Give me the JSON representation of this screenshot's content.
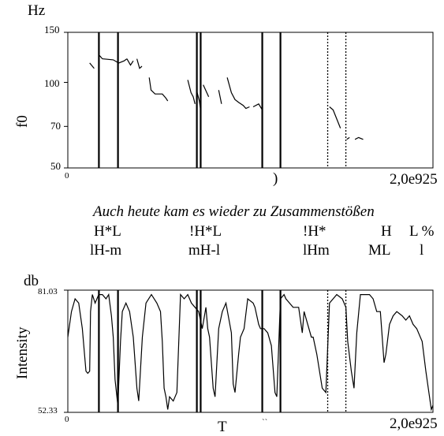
{
  "chart_data": [
    {
      "type": "line",
      "panel": "f0",
      "ylabel": "f0",
      "unit": "Hz",
      "y_scale": "log",
      "ylim": [
        50,
        150
      ],
      "yticks": [
        "50",
        "70",
        "100",
        "150"
      ],
      "x_start_label": "0",
      "x_end_label": "2,0е925",
      "x_partial_label": ")",
      "xlim": [
        0,
        2.00925
      ],
      "series": [
        {
          "segments": [
            [
              [
                0.12,
                117
              ],
              [
                0.145,
                112
              ]
            ],
            [
              [
                0.171,
                125
              ],
              [
                0.19,
                121
              ],
              [
                0.25,
                120
              ],
              [
                0.28,
                117
              ],
              [
                0.31,
                119
              ],
              [
                0.325,
                121
              ]
            ],
            [
              [
                0.325,
                121
              ],
              [
                0.345,
                115
              ],
              [
                0.36,
                119
              ]
            ],
            [
              [
                0.38,
                121
              ],
              [
                0.395,
                112
              ],
              [
                0.408,
                114
              ]
            ],
            [
              [
                0.448,
                104
              ],
              [
                0.458,
                94
              ],
              [
                0.48,
                91
              ],
              [
                0.52,
                91
              ],
              [
                0.54,
                88
              ],
              [
                0.55,
                86
              ]
            ],
            [
              [
                0.66,
                102
              ],
              [
                0.678,
                92
              ],
              [
                0.69,
                89
              ],
              [
                0.7,
                84
              ]
            ],
            [
              [
                0.71,
                93
              ],
              [
                0.724,
                86
              ],
              [
                0.731,
                80
              ]
            ],
            [
              [
                0.745,
                98
              ],
              [
                0.775,
                89
              ]
            ],
            [
              [
                0.83,
                94
              ],
              [
                0.846,
                84
              ]
            ],
            [
              [
                0.877,
                104
              ],
              [
                0.9,
                92
              ],
              [
                0.92,
                87
              ],
              [
                0.94,
                85
              ],
              [
                0.965,
                83
              ],
              [
                0.98,
                81
              ],
              [
                1.0,
                82
              ]
            ],
            [
              [
                1.02,
                82
              ],
              [
                1.05,
                84
              ],
              [
                1.07,
                80
              ]
            ],
            [
              [
                1.44,
                82
              ],
              [
                1.46,
                80
              ],
              [
                1.5,
                69
              ]
            ],
            [
              [
                1.535,
                63
              ],
              [
                1.55,
                64
              ]
            ],
            [
              [
                1.58,
                63
              ],
              [
                1.6,
                64
              ],
              [
                1.625,
                63
              ]
            ]
          ]
        }
      ]
    },
    {
      "type": "line",
      "panel": "intensity",
      "ylabel": "Intensity",
      "unit": "db",
      "ylim": [
        52.33,
        81.03
      ],
      "yticks": [
        "52.33",
        "81.03"
      ],
      "x_start_label": "0",
      "x_end_label": "2,0е925",
      "x_partial_label": "T",
      "x_partial_label_b": "`` ",
      "xlim": [
        0,
        2.00925
      ],
      "series": [
        {
          "points": [
            [
              0,
              70
            ],
            [
              0.02,
              76
            ],
            [
              0.04,
              79
            ],
            [
              0.06,
              78
            ],
            [
              0.08,
              72
            ],
            [
              0.1,
              62
            ],
            [
              0.11,
              61.5
            ],
            [
              0.12,
              62
            ],
            [
              0.125,
              76
            ],
            [
              0.135,
              80
            ],
            [
              0.15,
              78
            ],
            [
              0.16,
              79
            ],
            [
              0.17,
              80
            ],
            [
              0.19,
              80
            ],
            [
              0.21,
              79
            ],
            [
              0.225,
              80
            ],
            [
              0.24,
              75
            ],
            [
              0.25,
              70
            ],
            [
              0.26,
              60
            ],
            [
              0.275,
              54
            ],
            [
              0.29,
              69
            ],
            [
              0.3,
              76
            ],
            [
              0.32,
              78
            ],
            [
              0.34,
              76
            ],
            [
              0.36,
              70
            ],
            [
              0.38,
              58
            ],
            [
              0.39,
              55
            ],
            [
              0.41,
              70
            ],
            [
              0.43,
              78
            ],
            [
              0.46,
              80
            ],
            [
              0.49,
              78
            ],
            [
              0.51,
              76
            ],
            [
              0.52,
              69
            ],
            [
              0.53,
              58
            ],
            [
              0.54,
              56
            ],
            [
              0.55,
              53
            ],
            [
              0.56,
              56
            ],
            [
              0.58,
              55
            ],
            [
              0.6,
              57
            ],
            [
              0.62,
              80
            ],
            [
              0.64,
              79
            ],
            [
              0.66,
              80
            ],
            [
              0.68,
              78
            ],
            [
              0.7,
              77
            ],
            [
              0.72,
              76
            ],
            [
              0.74,
              72
            ],
            [
              0.76,
              77
            ],
            [
              0.77,
              72
            ],
            [
              0.78,
              70
            ],
            [
              0.8,
              58
            ],
            [
              0.81,
              56
            ],
            [
              0.83,
              72
            ],
            [
              0.85,
              76
            ],
            [
              0.87,
              78
            ],
            [
              0.9,
              71
            ],
            [
              0.91,
              59
            ],
            [
              0.92,
              57
            ],
            [
              0.94,
              66
            ],
            [
              0.95,
              70
            ],
            [
              0.97,
              72
            ],
            [
              0.99,
              79
            ],
            [
              1.02,
              78
            ],
            [
              1.03,
              77
            ],
            [
              1.05,
              73
            ],
            [
              1.06,
              72
            ],
            [
              1.08,
              72
            ],
            [
              1.1,
              71
            ],
            [
              1.12,
              68
            ],
            [
              1.14,
              57
            ],
            [
              1.15,
              56
            ],
            [
              1.17,
              79
            ],
            [
              1.19,
              80
            ],
            [
              1.2,
              79
            ],
            [
              1.22,
              78
            ],
            [
              1.24,
              77
            ],
            [
              1.27,
              77
            ],
            [
              1.29,
              71
            ],
            [
              1.3,
              76
            ],
            [
              1.32,
              73
            ],
            [
              1.34,
              70
            ],
            [
              1.35,
              70
            ],
            [
              1.37,
              66
            ],
            [
              1.4,
              58
            ],
            [
              1.42,
              57
            ],
            [
              1.44,
              78
            ],
            [
              1.46,
              79
            ],
            [
              1.48,
              80
            ],
            [
              1.51,
              79
            ],
            [
              1.53,
              77
            ],
            [
              1.54,
              69
            ],
            [
              1.56,
              62
            ],
            [
              1.575,
              58
            ],
            [
              1.59,
              71
            ],
            [
              1.61,
              80
            ],
            [
              1.63,
              80
            ],
            [
              1.66,
              80
            ],
            [
              1.68,
              79
            ],
            [
              1.7,
              76
            ],
            [
              1.72,
              76
            ],
            [
              1.74,
              64
            ],
            [
              1.75,
              66
            ],
            [
              1.77,
              73
            ],
            [
              1.79,
              75
            ],
            [
              1.81,
              76
            ],
            [
              1.84,
              75
            ],
            [
              1.86,
              74
            ],
            [
              1.88,
              75
            ],
            [
              1.9,
              73
            ],
            [
              1.92,
              72
            ],
            [
              1.95,
              69
            ],
            [
              1.97,
              62
            ],
            [
              1.99,
              56
            ],
            [
              2.0,
              53
            ],
            [
              2.00925,
              54
            ]
          ]
        }
      ]
    }
  ],
  "boundaries": {
    "f0_solid": [
      0.171,
      0.276,
      0.71,
      0.731,
      1.07,
      1.17
    ],
    "f0_dotted": [
      1.43,
      1.53
    ],
    "intensity_solid": [
      0.171,
      0.276,
      0.71,
      0.731,
      1.07,
      1.17
    ],
    "intensity_dotted": [
      1.43,
      1.53
    ]
  },
  "annotation": {
    "sentence": "Auch heute kam es wieder zu Zusammenstößen",
    "tones_row1": [
      "H*L",
      "!H*L",
      "!H*",
      "H",
      "L %"
    ],
    "tones_row2": [
      "lH-m",
      "mH-l",
      "lHm",
      "ML",
      "l"
    ]
  }
}
